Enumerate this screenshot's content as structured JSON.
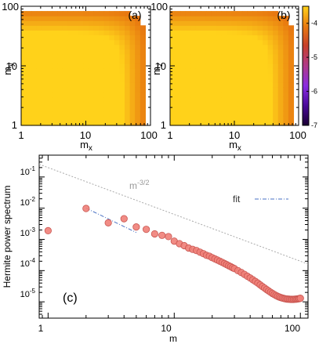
{
  "chart_data": [
    {
      "type": "heatmap",
      "panel_label": "(a)",
      "xlabel": "m",
      "xlabel_sub": "x",
      "ylabel": "m",
      "ylabel_sub": "y",
      "xscale": "log",
      "yscale": "log",
      "xlim": [
        1,
        100
      ],
      "ylim": [
        1,
        100
      ],
      "x_ticks": [
        "1",
        "10",
        "100"
      ],
      "y_ticks": [
        "1",
        "10",
        "100"
      ],
      "value_formula": "log10 spectrum ≈ -1.0 - 1.6*log10(sqrt(mx^2+my^2)), masked where sqrt(mx^2+my^2) > 90",
      "cutoff_radius": 90
    },
    {
      "type": "heatmap",
      "panel_label": "(b)",
      "xlabel": "m",
      "xlabel_sub": "x",
      "ylabel": "m",
      "ylabel_sub": "z",
      "xscale": "log",
      "yscale": "log",
      "xlim": [
        1,
        100
      ],
      "ylim": [
        1,
        100
      ],
      "x_ticks": [
        "1",
        "10",
        "100"
      ],
      "y_ticks": [
        "1",
        "10",
        "100"
      ],
      "value_formula": "log10 spectrum ≈ -1.0 - 1.6*log10(sqrt(mx^2+mz^2)), masked where sqrt(mx^2+mz^2) > 90",
      "cutoff_radius": 90,
      "colorbar": {
        "range": [
          -7,
          -3.5
        ],
        "ticks": [
          -4,
          -5,
          -6,
          -7
        ],
        "tick_labels": [
          "-4",
          "-5",
          "-6",
          "-7"
        ],
        "colors": [
          "#1a0033",
          "#4b0a9c",
          "#8a2be2",
          "#b03a8a",
          "#c8402a",
          "#e87a10",
          "#ffd21a"
        ]
      }
    },
    {
      "type": "scatter",
      "panel_label": "(c)",
      "xlabel": "m",
      "ylabel": "Hermite power spectrum",
      "xscale": "log",
      "yscale": "log",
      "xlim": [
        0.85,
        115
      ],
      "ylim": [
        3e-06,
        0.5
      ],
      "x_ticks": [
        "1",
        "10",
        "100"
      ],
      "y_ticks": [
        {
          "base": "10",
          "exp": "-1"
        },
        {
          "base": "10",
          "exp": "-2"
        },
        {
          "base": "10",
          "exp": "-3"
        },
        {
          "base": "10",
          "exp": "-4"
        },
        {
          "base": "10",
          "exp": "-5"
        }
      ],
      "series": [
        {
          "x": [
            1,
            2,
            3,
            4,
            5,
            6,
            7,
            8,
            9,
            10,
            11,
            12,
            13,
            14,
            15,
            16,
            17,
            18,
            19,
            20,
            21,
            22,
            23,
            24,
            25,
            26,
            27,
            28,
            29,
            30,
            32,
            34,
            36,
            38,
            40,
            42,
            44,
            46,
            48,
            50,
            52,
            54,
            56,
            58,
            60,
            62,
            64,
            66,
            68,
            70,
            72,
            74,
            76,
            78,
            80,
            82,
            84,
            86,
            88,
            90,
            92,
            94,
            96,
            98,
            100
          ],
          "y": [
            0.0019,
            0.0098,
            0.0034,
            0.0046,
            0.0025,
            0.0021,
            0.0015,
            0.00135,
            0.00123,
            0.00088,
            0.00073,
            0.00063,
            0.00053,
            0.00048,
            0.00044,
            0.00039,
            0.00035,
            0.00031,
            0.00029,
            0.00026,
            0.000238,
            0.000218,
            0.0002,
            0.000184,
            0.000169,
            0.000156,
            0.000144,
            0.000134,
            0.000124,
            0.000116,
            0.0001,
            8.7e-05,
            7.6e-05,
            6.6e-05,
            5.8e-05,
            5.1e-05,
            4.5e-05,
            3.98e-05,
            3.5e-05,
            3.1e-05,
            2.77e-05,
            2.48e-05,
            2.24e-05,
            2.03e-05,
            1.86e-05,
            1.72e-05,
            1.6e-05,
            1.5e-05,
            1.43e-05,
            1.37e-05,
            1.32e-05,
            1.28e-05,
            1.25e-05,
            1.23e-05,
            1.22e-05,
            1.21e-05,
            1.2e-05,
            1.2e-05,
            1.2e-05,
            1.21e-05,
            1.22e-05,
            1.23e-05,
            1.25e-05,
            1.27e-05,
            1.3e-05
          ],
          "color": "#f08078"
        }
      ],
      "reference_line": {
        "label_base": "m",
        "label_exp": "-3/2",
        "x": [
          0.85,
          115
        ],
        "y0": 0.2,
        "exponent": -1.5,
        "color": "#aaaaaa"
      },
      "fit_line": {
        "label": "fit",
        "x": [
          2,
          5
        ],
        "y0": 0.039,
        "exponent": -1.96,
        "color": "#4a72c4"
      }
    }
  ]
}
